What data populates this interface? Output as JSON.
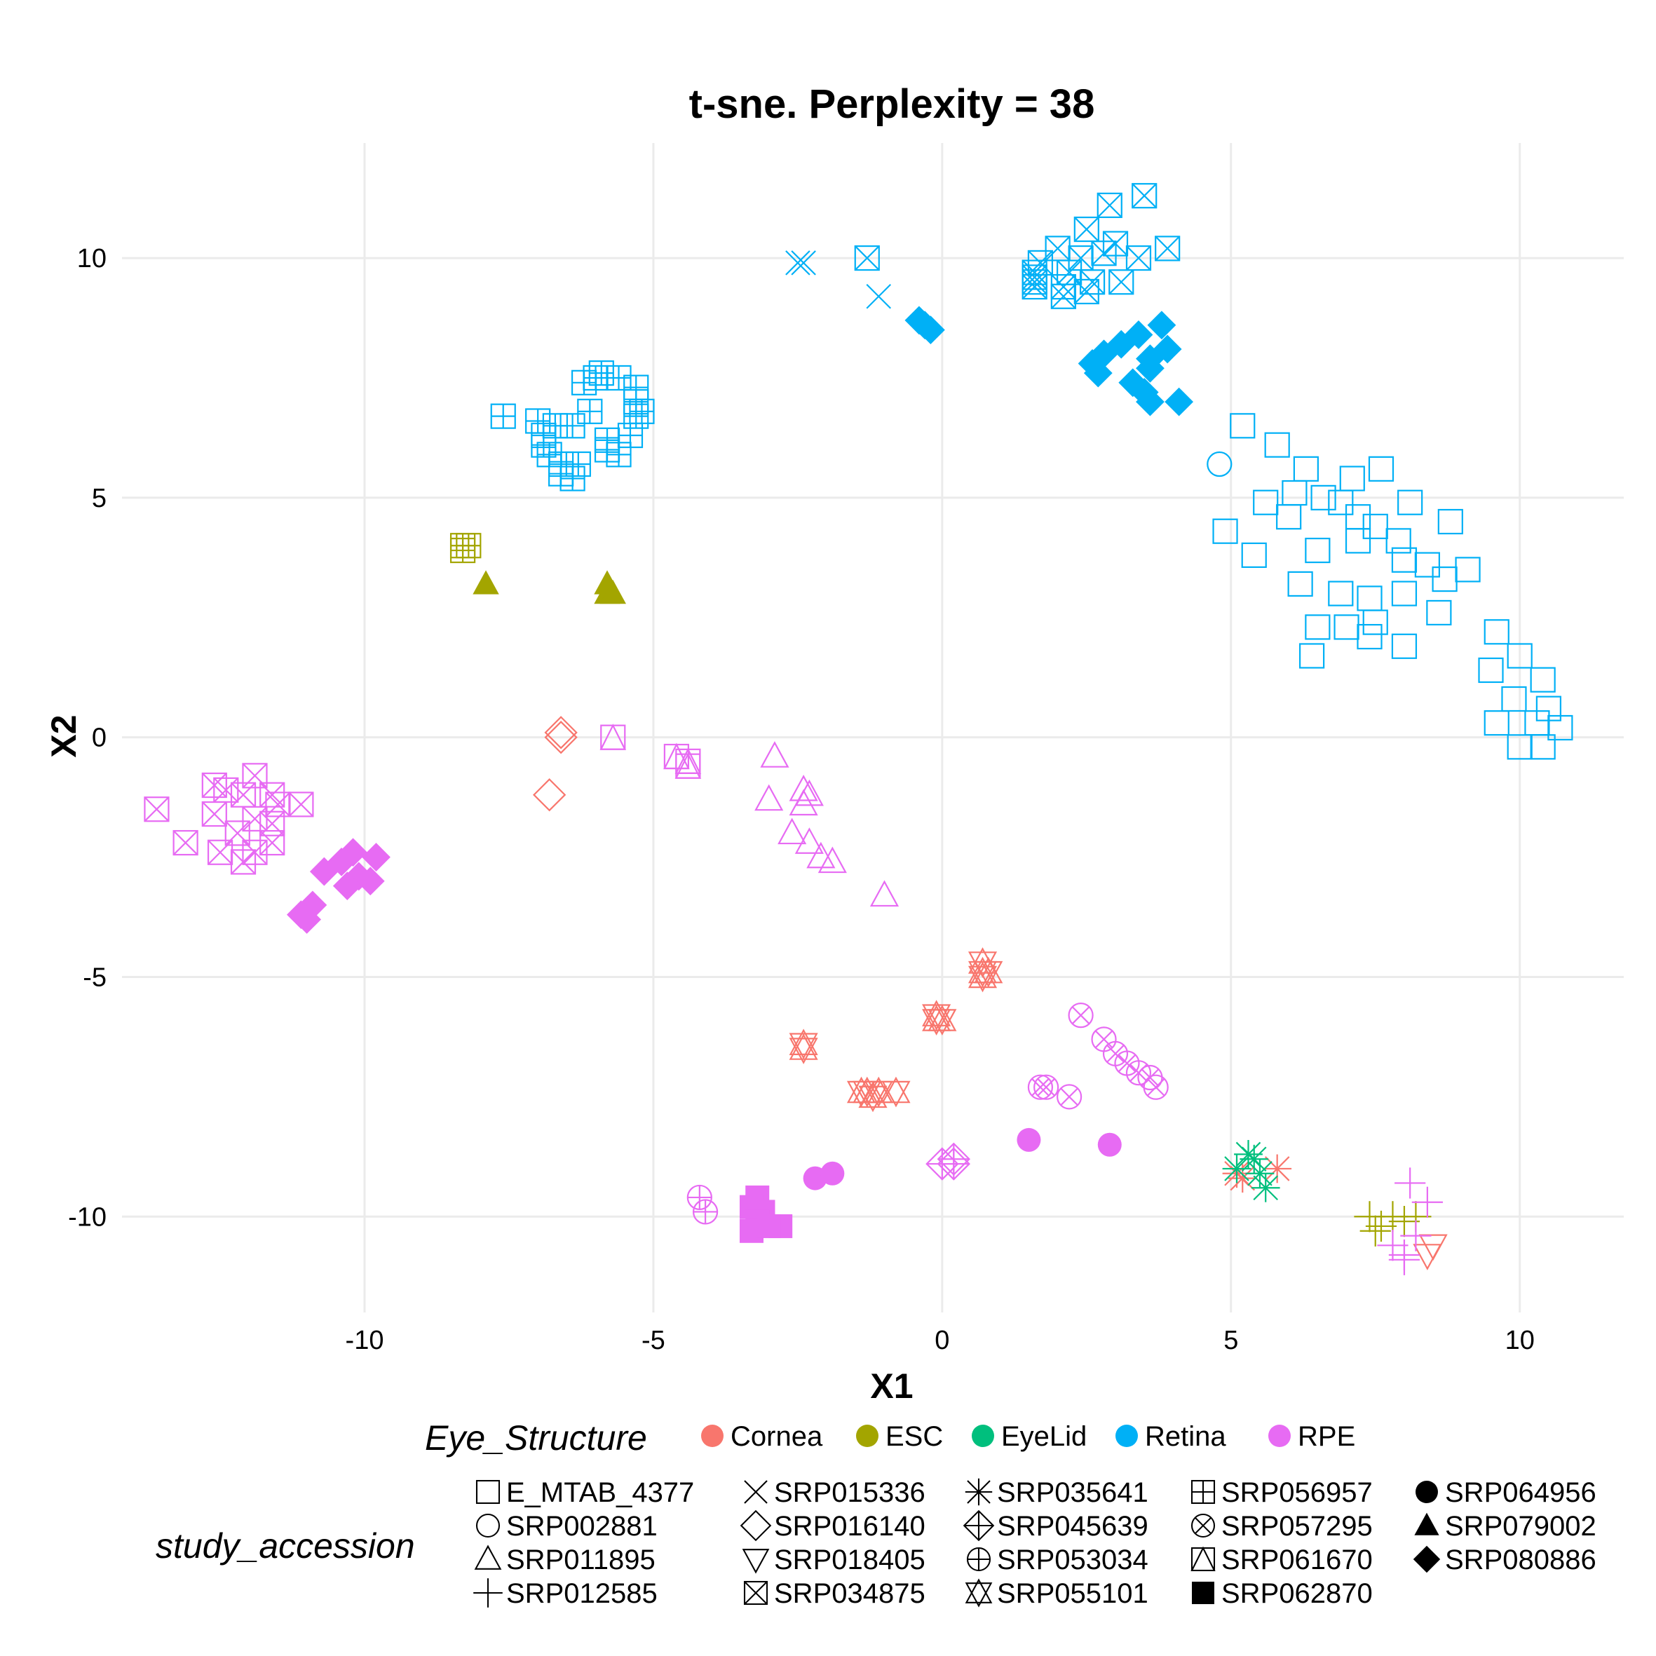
{
  "chart_data": {
    "type": "scatter",
    "title": "t-sne. Perplexity = 38",
    "xlabel": "X1",
    "ylabel": "X2",
    "xlim": [
      -14.2,
      11.8
    ],
    "ylim": [
      -12.0,
      12.4
    ],
    "xticks": [
      -10,
      -5,
      0,
      5,
      10
    ],
    "yticks": [
      -10,
      -5,
      0,
      5,
      10
    ],
    "xtick_labels": [
      "-10",
      "-5",
      "0",
      "5",
      "10"
    ],
    "ytick_labels": [
      "-10",
      "-5",
      "0",
      "5",
      "10"
    ],
    "grid": true,
    "legend_position": "bottom",
    "color_legend": {
      "title": "Eye_Structure",
      "items": [
        {
          "label": "Cornea",
          "color": "#F8766D"
        },
        {
          "label": "ESC",
          "color": "#A3A500"
        },
        {
          "label": "EyeLid",
          "color": "#00BF7D"
        },
        {
          "label": "Retina",
          "color": "#00B0F6"
        },
        {
          "label": "RPE",
          "color": "#E76BF3"
        }
      ]
    },
    "shape_legend": {
      "title": "study_accession",
      "items": [
        {
          "label": "E_MTAB_4377",
          "shape": "square-open"
        },
        {
          "label": "SRP002881",
          "shape": "circle-open"
        },
        {
          "label": "SRP011895",
          "shape": "triangle-open"
        },
        {
          "label": "SRP012585",
          "shape": "plus"
        },
        {
          "label": "SRP015336",
          "shape": "cross"
        },
        {
          "label": "SRP016140",
          "shape": "diamond-open"
        },
        {
          "label": "SRP018405",
          "shape": "triangle-down-open"
        },
        {
          "label": "SRP034875",
          "shape": "square-cross"
        },
        {
          "label": "SRP035641",
          "shape": "asterisk"
        },
        {
          "label": "SRP045639",
          "shape": "diamond-plus"
        },
        {
          "label": "SRP053034",
          "shape": "circle-plus"
        },
        {
          "label": "SRP055101",
          "shape": "star-of-david"
        },
        {
          "label": "SRP056957",
          "shape": "square-plus"
        },
        {
          "label": "SRP057295",
          "shape": "circle-cross"
        },
        {
          "label": "SRP061670",
          "shape": "square-triangle"
        },
        {
          "label": "SRP062870",
          "shape": "square-filled"
        },
        {
          "label": "SRP064956",
          "shape": "circle-filled"
        },
        {
          "label": "SRP079002",
          "shape": "triangle-filled"
        },
        {
          "label": "SRP080886",
          "shape": "diamond-filled"
        }
      ]
    },
    "series": [
      {
        "structure": "Retina",
        "study": "E_MTAB_4377",
        "points": [
          [
            5.2,
            6.5
          ],
          [
            5.8,
            6.1
          ],
          [
            6.3,
            5.6
          ],
          [
            5.6,
            4.9
          ],
          [
            6.1,
            5.1
          ],
          [
            6.6,
            5.0
          ],
          [
            7.1,
            5.4
          ],
          [
            7.6,
            5.6
          ],
          [
            6.0,
            4.6
          ],
          [
            7.2,
            4.6
          ],
          [
            6.9,
            4.9
          ],
          [
            7.5,
            4.4
          ],
          [
            8.1,
            4.9
          ],
          [
            8.8,
            4.5
          ],
          [
            4.9,
            4.3
          ],
          [
            5.4,
            3.8
          ],
          [
            6.5,
            3.9
          ],
          [
            7.2,
            4.1
          ],
          [
            7.9,
            4.1
          ],
          [
            8.0,
            3.7
          ],
          [
            8.4,
            3.6
          ],
          [
            8.7,
            3.3
          ],
          [
            9.1,
            3.5
          ],
          [
            6.2,
            3.2
          ],
          [
            6.9,
            3.0
          ],
          [
            7.4,
            2.9
          ],
          [
            8.0,
            3.0
          ],
          [
            8.6,
            2.6
          ],
          [
            7.0,
            2.3
          ],
          [
            7.5,
            2.4
          ],
          [
            6.5,
            2.3
          ],
          [
            9.6,
            2.2
          ],
          [
            7.4,
            2.1
          ],
          [
            8.0,
            1.9
          ],
          [
            6.4,
            1.7
          ],
          [
            9.5,
            1.4
          ],
          [
            10.0,
            1.7
          ],
          [
            9.9,
            0.8
          ],
          [
            10.4,
            1.2
          ],
          [
            10.5,
            0.6
          ],
          [
            9.6,
            0.3
          ],
          [
            10.3,
            0.3
          ],
          [
            10.7,
            0.2
          ],
          [
            10.0,
            -0.2
          ],
          [
            10.4,
            -0.2
          ]
        ]
      },
      {
        "structure": "Retina",
        "study": "SRP002881",
        "points": [
          [
            4.8,
            5.7
          ]
        ]
      },
      {
        "structure": "Retina",
        "study": "SRP015336",
        "points": [
          [
            -2.4,
            9.9
          ],
          [
            -2.5,
            9.9
          ],
          [
            -1.1,
            9.2
          ]
        ]
      },
      {
        "structure": "Retina",
        "study": "SRP034875",
        "points": [
          [
            -1.3,
            10.0
          ],
          [
            3.5,
            11.3
          ],
          [
            2.9,
            11.1
          ],
          [
            3.9,
            10.2
          ],
          [
            2.5,
            10.6
          ],
          [
            3.0,
            10.3
          ],
          [
            2.0,
            10.2
          ],
          [
            2.4,
            10.0
          ],
          [
            2.8,
            10.1
          ],
          [
            3.4,
            10.0
          ],
          [
            1.7,
            9.9
          ],
          [
            2.2,
            9.7
          ],
          [
            2.6,
            9.5
          ],
          [
            3.1,
            9.5
          ],
          [
            1.6,
            9.5
          ],
          [
            1.6,
            9.6
          ],
          [
            2.1,
            9.4
          ],
          [
            2.5,
            9.3
          ],
          [
            1.6,
            9.4
          ],
          [
            2.1,
            9.2
          ],
          [
            1.6,
            9.7
          ]
        ]
      },
      {
        "structure": "Retina",
        "study": "SRP056957",
        "points": [
          [
            -7.6,
            6.7
          ],
          [
            -7.0,
            6.6
          ],
          [
            -6.9,
            6.3
          ],
          [
            -6.4,
            6.5
          ],
          [
            -6.1,
            6.8
          ],
          [
            -6.0,
            7.5
          ],
          [
            -5.9,
            7.6
          ],
          [
            -6.2,
            7.4
          ],
          [
            -5.6,
            7.5
          ],
          [
            -5.3,
            7.3
          ],
          [
            -5.3,
            7.0
          ],
          [
            -5.2,
            6.8
          ],
          [
            -5.4,
            6.3
          ],
          [
            -5.8,
            6.0
          ],
          [
            -5.6,
            5.9
          ],
          [
            -6.9,
            6.1
          ],
          [
            -6.8,
            5.9
          ],
          [
            -6.6,
            5.7
          ],
          [
            -6.3,
            5.7
          ],
          [
            -6.6,
            5.5
          ],
          [
            -6.4,
            5.4
          ],
          [
            -6.7,
            6.5
          ],
          [
            -5.8,
            6.2
          ],
          [
            -5.3,
            6.7
          ]
        ]
      },
      {
        "structure": "Retina",
        "study": "SRP080886",
        "points": [
          [
            -0.4,
            8.7
          ],
          [
            -0.3,
            8.6
          ],
          [
            -0.2,
            8.5
          ],
          [
            2.8,
            8.0
          ],
          [
            2.6,
            7.8
          ],
          [
            2.7,
            7.6
          ],
          [
            3.1,
            8.2
          ],
          [
            3.4,
            8.4
          ],
          [
            3.8,
            8.6
          ],
          [
            3.9,
            8.1
          ],
          [
            3.6,
            7.9
          ],
          [
            3.6,
            7.7
          ],
          [
            3.3,
            7.4
          ],
          [
            3.5,
            7.2
          ],
          [
            3.6,
            7.0
          ],
          [
            4.1,
            7.0
          ]
        ]
      },
      {
        "structure": "ESC",
        "study": "SRP056957",
        "points": [
          [
            -8.3,
            4.0
          ],
          [
            -8.2,
            4.0
          ],
          [
            -8.3,
            3.9
          ]
        ]
      },
      {
        "structure": "ESC",
        "study": "SRP079002",
        "points": [
          [
            -7.9,
            3.2
          ],
          [
            -5.8,
            3.2
          ],
          [
            -5.8,
            3.0
          ],
          [
            -5.7,
            3.0
          ]
        ]
      },
      {
        "structure": "ESC",
        "study": "SRP012585",
        "points": [
          [
            7.4,
            -10.0
          ],
          [
            7.6,
            -10.2
          ],
          [
            7.8,
            -10.0
          ],
          [
            8.0,
            -10.1
          ],
          [
            8.2,
            -10.0
          ],
          [
            7.5,
            -10.3
          ]
        ]
      },
      {
        "structure": "Cornea",
        "study": "SRP016140",
        "points": [
          [
            -6.6,
            0.1
          ],
          [
            -6.6,
            0.0
          ],
          [
            -6.8,
            -1.2
          ]
        ]
      },
      {
        "structure": "Cornea",
        "study": "SRP055101",
        "points": [
          [
            0.7,
            -4.7
          ],
          [
            0.7,
            -4.9
          ],
          [
            0.8,
            -4.9
          ],
          [
            0.7,
            -5.0
          ],
          [
            -0.1,
            -5.8
          ],
          [
            -0.1,
            -5.9
          ],
          [
            0.0,
            -5.9
          ],
          [
            -2.4,
            -6.4
          ],
          [
            -2.4,
            -6.5
          ],
          [
            -1.4,
            -7.4
          ],
          [
            -1.3,
            -7.4
          ],
          [
            -1.1,
            -7.4
          ],
          [
            -0.8,
            -7.4
          ],
          [
            -1.2,
            -7.5
          ]
        ]
      },
      {
        "structure": "Cornea",
        "study": "SRP035641",
        "points": [
          [
            5.1,
            -9.1
          ],
          [
            5.2,
            -9.2
          ],
          [
            5.8,
            -9.0
          ]
        ]
      },
      {
        "structure": "Cornea",
        "study": "SRP018405",
        "points": [
          [
            8.5,
            -10.6
          ],
          [
            8.4,
            -10.8
          ]
        ]
      },
      {
        "structure": "EyeLid",
        "study": "SRP035641",
        "points": [
          [
            5.3,
            -8.7
          ],
          [
            5.4,
            -8.8
          ],
          [
            5.1,
            -9.0
          ],
          [
            5.5,
            -9.1
          ],
          [
            5.6,
            -9.4
          ]
        ]
      },
      {
        "structure": "RPE",
        "study": "SRP034875",
        "points": [
          [
            -13.6,
            -1.5
          ],
          [
            -12.6,
            -1.0
          ],
          [
            -12.4,
            -1.1
          ],
          [
            -11.9,
            -0.8
          ],
          [
            -12.1,
            -1.2
          ],
          [
            -11.6,
            -1.2
          ],
          [
            -11.1,
            -1.4
          ],
          [
            -11.5,
            -1.4
          ],
          [
            -12.6,
            -1.6
          ],
          [
            -11.9,
            -1.7
          ],
          [
            -11.6,
            -1.8
          ],
          [
            -12.2,
            -2.0
          ],
          [
            -13.1,
            -2.2
          ],
          [
            -11.6,
            -2.2
          ],
          [
            -11.9,
            -2.4
          ],
          [
            -12.5,
            -2.4
          ],
          [
            -12.1,
            -2.6
          ]
        ]
      },
      {
        "structure": "RPE",
        "study": "SRP080886",
        "points": [
          [
            -10.7,
            -2.8
          ],
          [
            -10.4,
            -2.6
          ],
          [
            -10.2,
            -2.4
          ],
          [
            -9.8,
            -2.5
          ],
          [
            -10.1,
            -2.9
          ],
          [
            -9.9,
            -3.0
          ],
          [
            -10.3,
            -3.1
          ],
          [
            -10.9,
            -3.5
          ],
          [
            -11.1,
            -3.7
          ],
          [
            -11.0,
            -3.8
          ]
        ]
      },
      {
        "structure": "RPE",
        "study": "SRP061670",
        "points": [
          [
            -5.7,
            0.0
          ],
          [
            -4.6,
            -0.4
          ],
          [
            -4.4,
            -0.5
          ],
          [
            -4.4,
            -0.6
          ]
        ]
      },
      {
        "structure": "RPE",
        "study": "SRP011895",
        "points": [
          [
            -2.9,
            -0.4
          ],
          [
            -3.0,
            -1.3
          ],
          [
            -2.4,
            -1.1
          ],
          [
            -2.3,
            -1.2
          ],
          [
            -2.4,
            -1.4
          ],
          [
            -2.6,
            -2.0
          ],
          [
            -2.3,
            -2.2
          ],
          [
            -2.1,
            -2.5
          ],
          [
            -1.9,
            -2.6
          ],
          [
            -1.0,
            -3.3
          ]
        ]
      },
      {
        "structure": "RPE",
        "study": "SRP057295",
        "points": [
          [
            2.4,
            -5.8
          ],
          [
            2.8,
            -6.3
          ],
          [
            3.0,
            -6.6
          ],
          [
            3.2,
            -6.8
          ],
          [
            3.4,
            -7.0
          ],
          [
            3.6,
            -7.1
          ],
          [
            3.7,
            -7.3
          ],
          [
            1.7,
            -7.3
          ],
          [
            1.8,
            -7.3
          ],
          [
            2.2,
            -7.5
          ]
        ]
      },
      {
        "structure": "RPE",
        "study": "SRP045639",
        "points": [
          [
            0.0,
            -8.9
          ],
          [
            0.2,
            -8.8
          ],
          [
            0.2,
            -8.9
          ]
        ]
      },
      {
        "structure": "RPE",
        "study": "SRP064956",
        "points": [
          [
            1.5,
            -8.4
          ],
          [
            2.9,
            -8.5
          ],
          [
            -2.2,
            -9.2
          ],
          [
            -1.9,
            -9.1
          ]
        ]
      },
      {
        "structure": "RPE",
        "study": "SRP053034",
        "points": [
          [
            -4.2,
            -9.6
          ],
          [
            -4.1,
            -9.9
          ]
        ]
      },
      {
        "structure": "RPE",
        "study": "SRP062870",
        "points": [
          [
            -3.2,
            -9.6
          ],
          [
            -3.3,
            -9.8
          ],
          [
            -3.1,
            -9.9
          ],
          [
            -3.2,
            -10.1
          ],
          [
            -3.3,
            -10.3
          ],
          [
            -2.8,
            -10.2
          ],
          [
            -3.0,
            -10.2
          ]
        ]
      },
      {
        "structure": "RPE",
        "study": "SRP012585",
        "points": [
          [
            8.1,
            -9.3
          ],
          [
            8.4,
            -9.7
          ],
          [
            8.2,
            -10.4
          ],
          [
            7.8,
            -10.6
          ],
          [
            8.0,
            -10.8
          ],
          [
            8.0,
            -10.9
          ]
        ]
      }
    ]
  }
}
